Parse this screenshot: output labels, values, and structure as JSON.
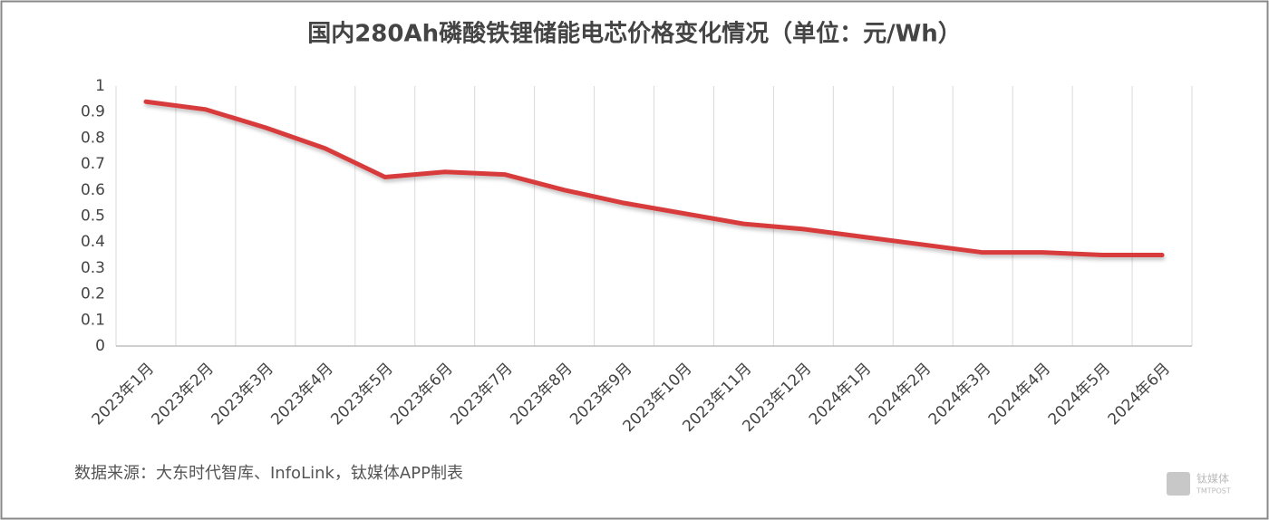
{
  "chart_data": {
    "type": "line",
    "title": "国内280Ah磷酸铁锂储能电芯价格变化情况（单位：元/Wh）",
    "categories": [
      "2023年1月",
      "2023年2月",
      "2023年3月",
      "2023年4月",
      "2023年5月",
      "2023年6月",
      "2023年7月",
      "2023年8月",
      "2023年9月",
      "2023年10月",
      "2023年11月",
      "2023年12月",
      "2024年1月",
      "2024年2月",
      "2024年3月",
      "2024年4月",
      "2024年5月",
      "2024年6月"
    ],
    "values": [
      0.94,
      0.91,
      0.84,
      0.76,
      0.65,
      0.67,
      0.66,
      0.6,
      0.55,
      0.51,
      0.47,
      0.45,
      0.42,
      0.39,
      0.36,
      0.36,
      0.35,
      0.35
    ],
    "color": "#d83a3a",
    "ylim": [
      0,
      1
    ],
    "yticks": [
      0,
      0.1,
      0.2,
      0.3,
      0.4,
      0.5,
      0.6,
      0.7,
      0.8,
      0.9,
      1
    ],
    "grid": "x",
    "source": "数据来源：大东时代智库、InfoLink，钛媒体APP制表",
    "watermark": "钛媒体",
    "watermark_sub": "TMTPOST"
  }
}
